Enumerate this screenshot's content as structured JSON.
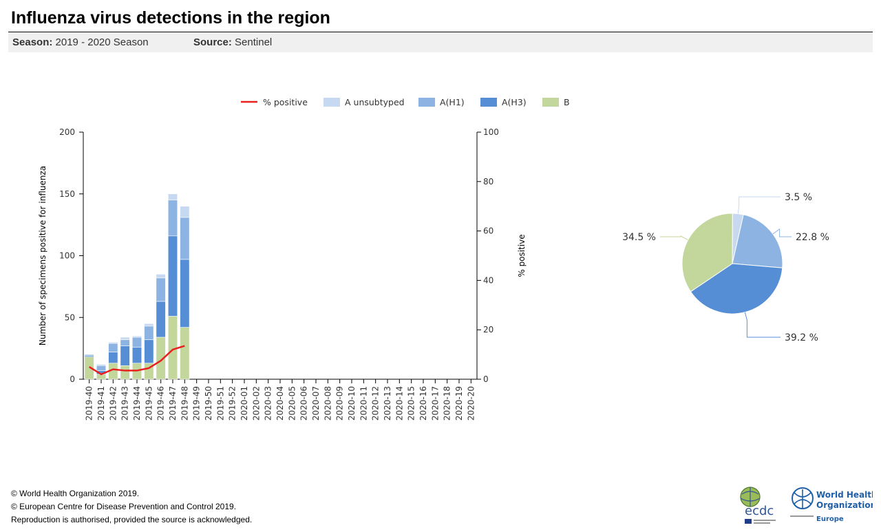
{
  "header": {
    "title": "Influenza virus detections in the region",
    "season_label": "Season:",
    "season_value": "2019 - 2020 Season",
    "source_label": "Source:",
    "source_value": "Sentinel"
  },
  "colors": {
    "positive_line": "#e8201e",
    "a_unsubtyped": "#c6d9f0",
    "a_h1": "#8db3e2",
    "a_h3": "#558ed5",
    "b": "#c3d69b"
  },
  "chart_data": [
    {
      "type": "bar",
      "stacked": true,
      "categories": [
        "2019-40",
        "2019-41",
        "2019-42",
        "2019-43",
        "2019-44",
        "2019-45",
        "2019-46",
        "2019-47",
        "2019-48",
        "2019-49",
        "2019-50",
        "2019-51",
        "2019-52",
        "2020-01",
        "2020-02",
        "2020-03",
        "2020-04",
        "2020-05",
        "2020-06",
        "2020-07",
        "2020-08",
        "2020-09",
        "2020-10",
        "2020-11",
        "2020-12",
        "2020-13",
        "2020-14",
        "2020-15",
        "2020-16",
        "2020-17",
        "2020-18",
        "2020-19",
        "2020-20"
      ],
      "series": [
        {
          "name": "B",
          "color_key": "b",
          "values": [
            18,
            4,
            13,
            11,
            13,
            13,
            34,
            51,
            42,
            null,
            null,
            null,
            null,
            null,
            null,
            null,
            null,
            null,
            null,
            null,
            null,
            null,
            null,
            null,
            null,
            null,
            null,
            null,
            null,
            null,
            null,
            null,
            null
          ]
        },
        {
          "name": "A(H3)",
          "color_key": "a_h3",
          "values": [
            1,
            3,
            9,
            16,
            13,
            19,
            29,
            65,
            55,
            null,
            null,
            null,
            null,
            null,
            null,
            null,
            null,
            null,
            null,
            null,
            null,
            null,
            null,
            null,
            null,
            null,
            null,
            null,
            null,
            null,
            null,
            null,
            null
          ]
        },
        {
          "name": "A(H1)",
          "color_key": "a_h1",
          "values": [
            1,
            4,
            7,
            5,
            8,
            11,
            19,
            29,
            34,
            null,
            null,
            null,
            null,
            null,
            null,
            null,
            null,
            null,
            null,
            null,
            null,
            null,
            null,
            null,
            null,
            null,
            null,
            null,
            null,
            null,
            null,
            null,
            null
          ]
        },
        {
          "name": "A unsubtyped",
          "color_key": "a_unsubtyped",
          "values": [
            0,
            1,
            1,
            2,
            1,
            2,
            3,
            5,
            9,
            null,
            null,
            null,
            null,
            null,
            null,
            null,
            null,
            null,
            null,
            null,
            null,
            null,
            null,
            null,
            null,
            null,
            null,
            null,
            null,
            null,
            null,
            null,
            null
          ]
        }
      ],
      "line_series": {
        "name": "% positive",
        "color_key": "positive_line",
        "values": [
          5,
          2,
          4,
          3.5,
          3.5,
          4.5,
          7.5,
          12,
          13.5,
          null,
          null,
          null,
          null,
          null,
          null,
          null,
          null,
          null,
          null,
          null,
          null,
          null,
          null,
          null,
          null,
          null,
          null,
          null,
          null,
          null,
          null,
          null,
          null
        ]
      },
      "legend_order": [
        "% positive",
        "A unsubtyped",
        "A(H1)",
        "A(H3)",
        "B"
      ],
      "ylabel": "Number of specimens positive for influenza",
      "ylim": [
        0,
        200
      ],
      "yticks": [
        0,
        50,
        100,
        150,
        200
      ],
      "y2label": "% positive",
      "y2lim": [
        0,
        100
      ],
      "y2ticks": [
        0,
        20,
        40,
        60,
        80,
        100
      ],
      "legend_position": "top"
    },
    {
      "type": "pie",
      "slices": [
        {
          "name": "A unsubtyped",
          "value": 3.5,
          "label": "3.5 %",
          "color_key": "a_unsubtyped"
        },
        {
          "name": "A(H1)",
          "value": 22.8,
          "label": "22.8 %",
          "color_key": "a_h1"
        },
        {
          "name": "A(H3)",
          "value": 39.2,
          "label": "39.2 %",
          "color_key": "a_h3"
        },
        {
          "name": "B",
          "value": 34.5,
          "label": "34.5 %",
          "color_key": "b"
        }
      ]
    }
  ],
  "footer": {
    "line1": "© World Health Organization 2019.",
    "line2": "© European Centre for Disease Prevention and Control 2019.",
    "line3": "Reproduction is authorised, provided the source is acknowledged."
  },
  "logos": {
    "ecdc": "ecdc",
    "who_line1": "World Health",
    "who_line2": "Organization",
    "who_line3": "Europe"
  }
}
